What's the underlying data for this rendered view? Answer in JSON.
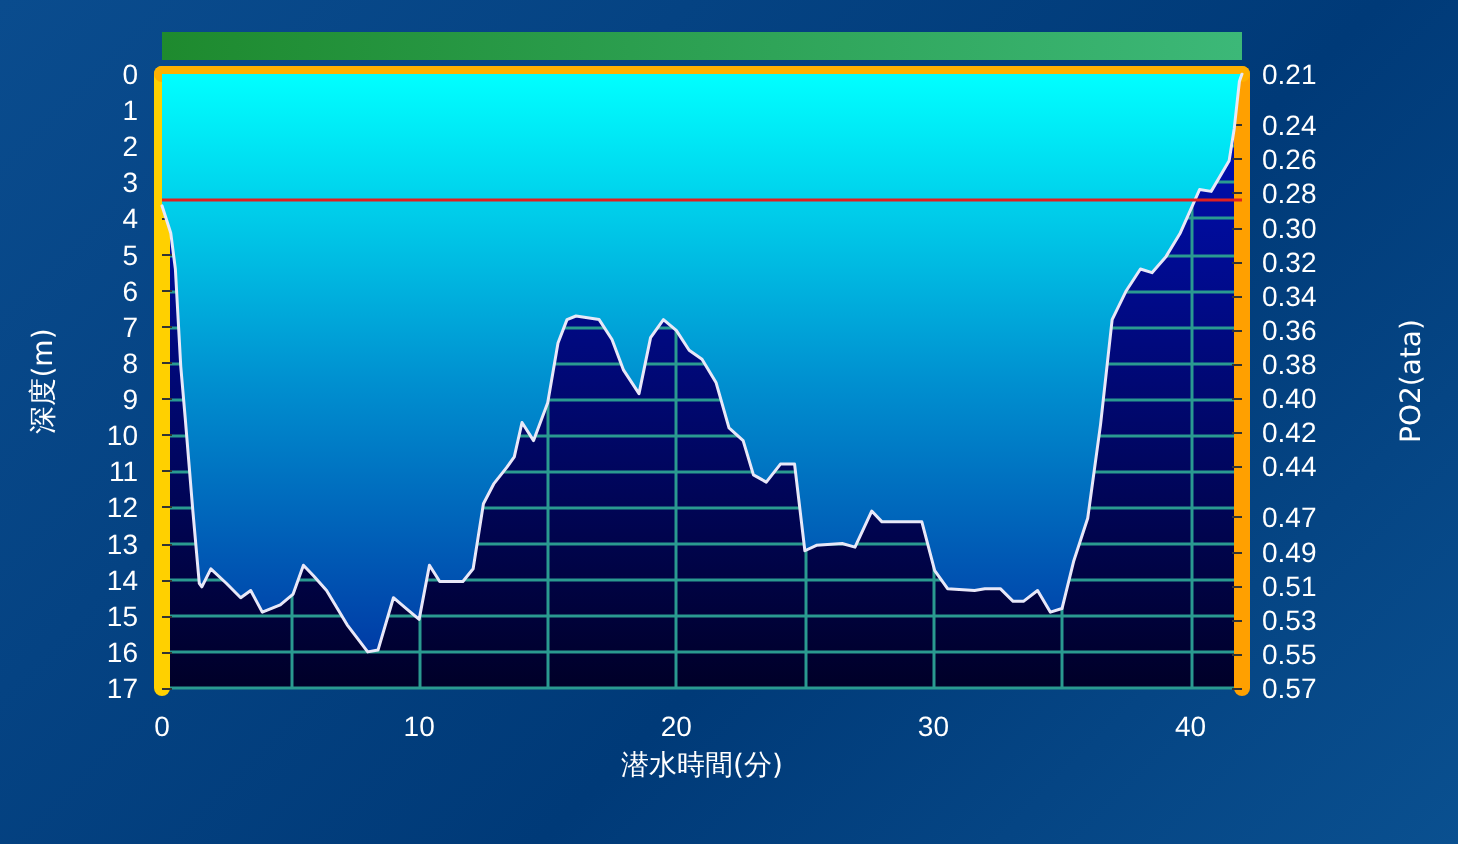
{
  "chart_data": {
    "type": "area",
    "xlabel": "潜水時間(分)",
    "ylabel": "深度(m)",
    "y2label": "PO2(ata)",
    "x": [
      0,
      0.34,
      0.52,
      0.73,
      0.9,
      1.2,
      1.45,
      1.55,
      1.9,
      2.5,
      3.06,
      3.45,
      3.9,
      4.6,
      5.1,
      5.5,
      5.9,
      6.4,
      7.2,
      8.0,
      8.4,
      9.0,
      9.5,
      10.0,
      10.4,
      10.8,
      11.7,
      12.1,
      12.5,
      12.9,
      13.4,
      13.7,
      14.0,
      14.45,
      15.0,
      15.4,
      15.75,
      16.1,
      17.0,
      17.5,
      17.95,
      18.55,
      19.0,
      19.5,
      20.0,
      20.5,
      21.0,
      21.55,
      22.05,
      22.6,
      23.0,
      23.5,
      24.05,
      24.6,
      25.0,
      25.45,
      26.45,
      26.95,
      27.6,
      28.0,
      29.55,
      30.05,
      30.55,
      31.6,
      32.0,
      32.6,
      33.1,
      33.5,
      34.05,
      34.55,
      35.0,
      35.45,
      36.0,
      36.5,
      36.95,
      37.5,
      38.05,
      38.5,
      39.05,
      39.6,
      40.35,
      40.8,
      41.5,
      41.7,
      41.9,
      42.0
    ],
    "series": [
      {
        "color": "#0090d0",
        "values": [
          3.65,
          4.4,
          5.4,
          8.1,
          9.5,
          12.1,
          14.1,
          14.2,
          13.7,
          14.1,
          14.5,
          14.3,
          14.9,
          14.7,
          14.4,
          13.6,
          13.9,
          14.3,
          15.25,
          16.0,
          15.95,
          14.5,
          14.8,
          15.1,
          13.6,
          14.05,
          14.05,
          13.7,
          11.9,
          11.35,
          10.9,
          10.6,
          9.65,
          10.15,
          9.1,
          7.45,
          6.8,
          6.7,
          6.8,
          7.35,
          8.2,
          8.85,
          7.3,
          6.8,
          7.1,
          7.65,
          7.9,
          8.55,
          9.8,
          10.15,
          11.1,
          11.3,
          10.8,
          10.8,
          13.2,
          13.05,
          13.0,
          13.1,
          12.1,
          12.4,
          12.4,
          13.75,
          14.25,
          14.3,
          14.25,
          14.25,
          14.6,
          14.6,
          14.3,
          14.9,
          14.8,
          13.5,
          12.3,
          9.7,
          6.8,
          6.0,
          5.4,
          5.5,
          5.05,
          4.4,
          3.2,
          3.25,
          2.4,
          1.5,
          0.2,
          0
        ]
      }
    ],
    "xlim": [
      0,
      42
    ],
    "xticks": [
      0,
      {
        "value": 5,
        "label": null
      },
      10,
      {
        "value": 15,
        "label": null
      },
      20,
      {
        "value": 25,
        "label": null
      },
      30,
      {
        "value": 35,
        "label": null
      },
      40
    ],
    "ylim": [
      17,
      0
    ],
    "yticks": [
      0,
      1,
      2,
      3,
      4,
      5,
      6,
      7,
      8,
      9,
      10,
      11,
      12,
      13,
      14,
      15,
      16,
      17
    ],
    "y2lim": [
      0.57,
      0.21
    ],
    "y2ticks": [
      0.21,
      0.24,
      0.26,
      0.28,
      {
        "value": 0.3,
        "label": "0.30"
      },
      0.32,
      0.34,
      0.36,
      0.38,
      {
        "value": 0.4,
        "label": "0.40"
      },
      0.42,
      0.44,
      0.47,
      0.49,
      0.51,
      0.53,
      0.55,
      0.57
    ],
    "ref_lines": [
      {
        "axis": "y",
        "value": 3.5,
        "color": "#e02020"
      }
    ],
    "grid": true,
    "marker": "none",
    "line_style": "solid"
  }
}
